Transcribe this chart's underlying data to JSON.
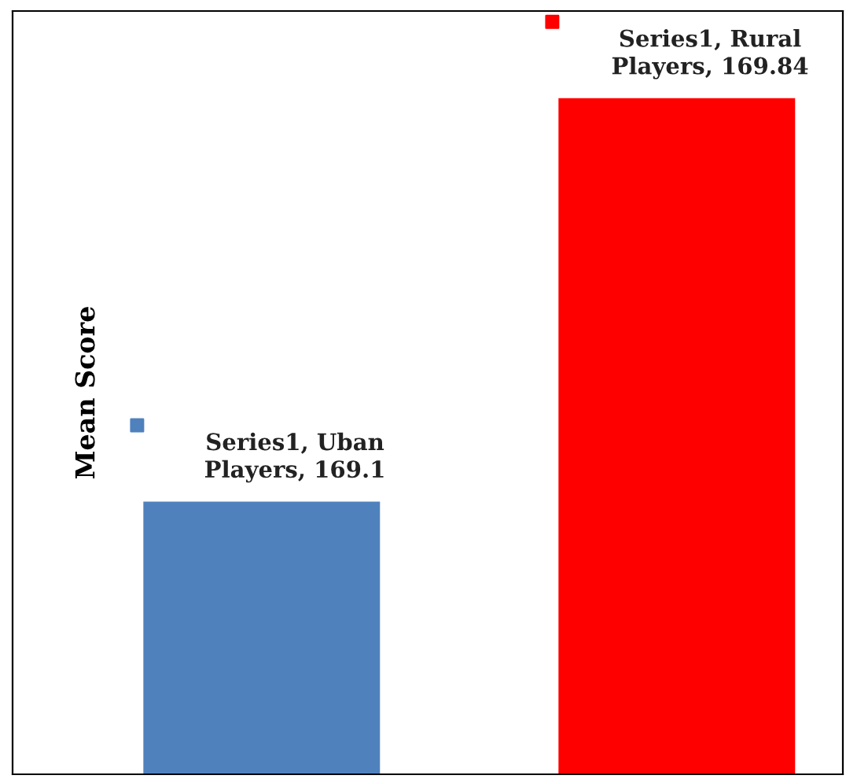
{
  "chart_data": {
    "type": "bar",
    "ylabel": "Mean Score",
    "categories": [
      null,
      null
    ],
    "values": [
      169.1,
      169.84
    ],
    "colors": [
      "#4f81bd",
      "#ff0000"
    ],
    "value_labels": [
      "Series1, Uban Players, 169.1",
      "Series1, Rural Players, 169.84"
    ],
    "ylim": [
      168.6,
      170.0
    ],
    "tick_labels": false,
    "grid": false,
    "legend": false
  }
}
